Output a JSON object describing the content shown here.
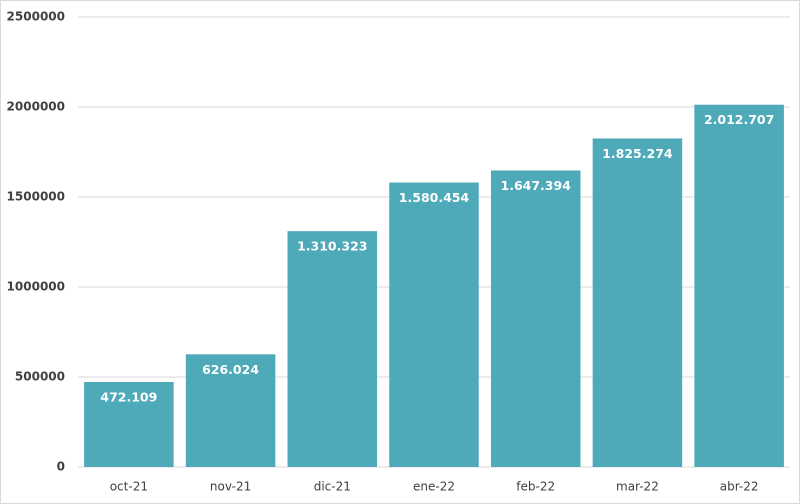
{
  "chart_data": {
    "type": "bar",
    "categories": [
      "oct-21",
      "nov-21",
      "dic-21",
      "ene-22",
      "feb-22",
      "mar-22",
      "abr-22"
    ],
    "values": [
      472109,
      626024,
      1310323,
      1580454,
      1647394,
      1825274,
      2012707
    ],
    "value_labels": [
      "472.109",
      "626.024",
      "1.310.323",
      "1.580.454",
      "1.647.394",
      "1.825.274",
      "2.012.707"
    ],
    "color": "#4ea9b8",
    "ylim": [
      0,
      2500000
    ],
    "yticks": [
      0,
      500000,
      1000000,
      1500000,
      2000000,
      2500000
    ],
    "grid": true
  }
}
